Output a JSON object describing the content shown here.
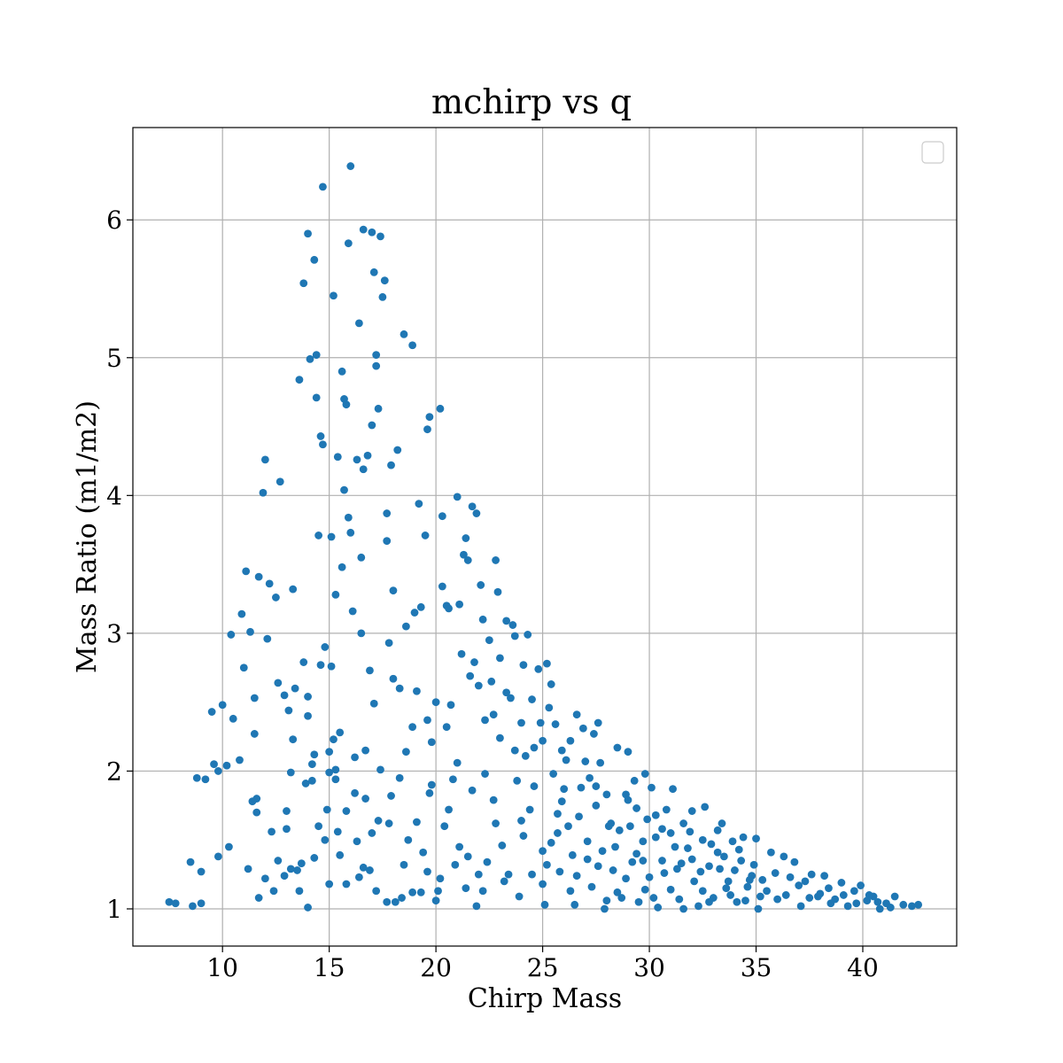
{
  "chart_data": {
    "type": "scatter",
    "title": "mchirp vs q",
    "xlabel": "Chirp Mass",
    "ylabel": "Mass Ratio (m1/m2)",
    "xlim": [
      5.8,
      44.4
    ],
    "ylim": [
      0.73,
      6.67
    ],
    "xticks": [
      10,
      15,
      20,
      25,
      30,
      35,
      40
    ],
    "yticks": [
      1,
      2,
      3,
      4,
      5,
      6
    ],
    "grid": true,
    "legend": {
      "placement": "top-right",
      "entries": []
    },
    "marker_color": "#1f77b4",
    "points": [
      [
        7.5,
        1.05
      ],
      [
        7.8,
        1.04
      ],
      [
        8.5,
        1.34
      ],
      [
        8.6,
        1.02
      ],
      [
        8.8,
        1.95
      ],
      [
        9.0,
        1.27
      ],
      [
        9.0,
        1.04
      ],
      [
        9.2,
        1.94
      ],
      [
        9.5,
        2.43
      ],
      [
        9.6,
        2.05
      ],
      [
        9.8,
        2.0
      ],
      [
        9.8,
        1.38
      ],
      [
        10.0,
        2.48
      ],
      [
        10.2,
        2.04
      ],
      [
        10.3,
        1.45
      ],
      [
        10.4,
        2.99
      ],
      [
        10.5,
        2.38
      ],
      [
        10.8,
        2.08
      ],
      [
        10.9,
        3.14
      ],
      [
        11.0,
        2.75
      ],
      [
        11.1,
        3.45
      ],
      [
        11.2,
        1.29
      ],
      [
        11.3,
        3.01
      ],
      [
        11.5,
        2.53
      ],
      [
        11.5,
        2.27
      ],
      [
        11.6,
        1.8
      ],
      [
        11.6,
        1.7
      ],
      [
        11.7,
        1.08
      ],
      [
        11.7,
        3.41
      ],
      [
        11.9,
        4.02
      ],
      [
        12.0,
        4.26
      ],
      [
        12.1,
        2.96
      ],
      [
        12.2,
        3.36
      ],
      [
        12.3,
        1.56
      ],
      [
        12.4,
        1.13
      ],
      [
        12.5,
        3.26
      ],
      [
        12.6,
        2.64
      ],
      [
        12.7,
        4.1
      ],
      [
        12.9,
        1.24
      ],
      [
        13.0,
        1.58
      ],
      [
        13.0,
        1.71
      ],
      [
        13.1,
        2.44
      ],
      [
        13.2,
        1.99
      ],
      [
        13.2,
        1.29
      ],
      [
        13.3,
        3.32
      ],
      [
        13.4,
        2.6
      ],
      [
        13.5,
        1.28
      ],
      [
        13.6,
        4.84
      ],
      [
        13.7,
        1.33
      ],
      [
        13.8,
        5.54
      ],
      [
        13.8,
        2.79
      ],
      [
        13.9,
        1.91
      ],
      [
        14.0,
        2.54
      ],
      [
        14.0,
        2.4
      ],
      [
        14.0,
        5.9
      ],
      [
        14.1,
        4.99
      ],
      [
        14.2,
        2.05
      ],
      [
        14.2,
        1.93
      ],
      [
        14.3,
        5.71
      ],
      [
        14.3,
        2.12
      ],
      [
        14.4,
        5.02
      ],
      [
        14.4,
        4.71
      ],
      [
        14.5,
        3.71
      ],
      [
        14.5,
        1.6
      ],
      [
        14.6,
        4.43
      ],
      [
        14.7,
        6.24
      ],
      [
        14.7,
        4.37
      ],
      [
        14.8,
        1.5
      ],
      [
        14.8,
        2.9
      ],
      [
        14.9,
        1.72
      ],
      [
        15.0,
        1.99
      ],
      [
        15.0,
        2.14
      ],
      [
        15.1,
        3.7
      ],
      [
        15.1,
        2.76
      ],
      [
        15.2,
        5.45
      ],
      [
        15.2,
        2.23
      ],
      [
        15.3,
        3.28
      ],
      [
        15.3,
        1.94
      ],
      [
        15.4,
        4.28
      ],
      [
        15.4,
        1.56
      ],
      [
        15.5,
        2.28
      ],
      [
        15.5,
        1.39
      ],
      [
        15.6,
        3.48
      ],
      [
        15.6,
        4.9
      ],
      [
        15.7,
        4.04
      ],
      [
        15.7,
        4.7
      ],
      [
        15.8,
        4.66
      ],
      [
        15.8,
        1.18
      ],
      [
        15.9,
        5.83
      ],
      [
        15.9,
        3.84
      ],
      [
        16.0,
        6.39
      ],
      [
        16.0,
        3.73
      ],
      [
        16.1,
        3.16
      ],
      [
        16.2,
        1.84
      ],
      [
        16.3,
        1.49
      ],
      [
        16.3,
        4.26
      ],
      [
        16.4,
        5.25
      ],
      [
        16.5,
        3.55
      ],
      [
        16.5,
        3.0
      ],
      [
        16.6,
        5.93
      ],
      [
        16.6,
        4.19
      ],
      [
        16.7,
        2.15
      ],
      [
        16.7,
        1.8
      ],
      [
        16.8,
        4.29
      ],
      [
        16.9,
        2.73
      ],
      [
        16.9,
        1.28
      ],
      [
        17.0,
        5.91
      ],
      [
        17.0,
        4.51
      ],
      [
        17.1,
        5.62
      ],
      [
        17.1,
        2.49
      ],
      [
        17.2,
        5.02
      ],
      [
        17.2,
        4.94
      ],
      [
        17.3,
        4.63
      ],
      [
        17.3,
        1.64
      ],
      [
        17.4,
        5.88
      ],
      [
        17.5,
        5.44
      ],
      [
        17.6,
        5.56
      ],
      [
        17.7,
        3.87
      ],
      [
        17.7,
        3.67
      ],
      [
        17.8,
        2.93
      ],
      [
        17.8,
        1.62
      ],
      [
        17.9,
        4.22
      ],
      [
        18.0,
        3.31
      ],
      [
        18.0,
        2.67
      ],
      [
        18.1,
        1.05
      ],
      [
        18.2,
        4.33
      ],
      [
        18.3,
        2.6
      ],
      [
        18.4,
        1.08
      ],
      [
        18.5,
        5.17
      ],
      [
        18.6,
        3.05
      ],
      [
        18.7,
        1.5
      ],
      [
        18.9,
        5.09
      ],
      [
        18.9,
        2.32
      ],
      [
        19.0,
        3.15
      ],
      [
        19.1,
        2.58
      ],
      [
        19.2,
        3.94
      ],
      [
        19.3,
        3.19
      ],
      [
        19.3,
        1.12
      ],
      [
        19.5,
        3.71
      ],
      [
        19.6,
        4.48
      ],
      [
        19.6,
        2.37
      ],
      [
        19.7,
        4.57
      ],
      [
        19.7,
        1.84
      ],
      [
        19.8,
        2.21
      ],
      [
        20.0,
        2.5
      ],
      [
        20.1,
        1.13
      ],
      [
        20.2,
        4.63
      ],
      [
        20.3,
        3.85
      ],
      [
        20.3,
        3.34
      ],
      [
        20.4,
        1.6
      ],
      [
        20.5,
        3.2
      ],
      [
        20.6,
        3.18
      ],
      [
        20.7,
        2.48
      ],
      [
        20.8,
        1.94
      ],
      [
        20.9,
        1.32
      ],
      [
        21.0,
        3.99
      ],
      [
        21.1,
        3.21
      ],
      [
        21.2,
        2.85
      ],
      [
        21.3,
        3.57
      ],
      [
        21.4,
        3.69
      ],
      [
        21.4,
        1.15
      ],
      [
        21.5,
        3.53
      ],
      [
        21.6,
        2.69
      ],
      [
        21.7,
        3.92
      ],
      [
        21.8,
        2.79
      ],
      [
        21.9,
        3.87
      ],
      [
        22.0,
        2.62
      ],
      [
        22.0,
        1.25
      ],
      [
        22.1,
        3.35
      ],
      [
        22.2,
        3.1
      ],
      [
        22.3,
        2.37
      ],
      [
        22.4,
        1.34
      ],
      [
        22.5,
        2.95
      ],
      [
        22.6,
        2.65
      ],
      [
        22.7,
        1.79
      ],
      [
        22.8,
        3.53
      ],
      [
        22.9,
        3.3
      ],
      [
        23.0,
        2.82
      ],
      [
        23.0,
        2.24
      ],
      [
        23.1,
        1.46
      ],
      [
        23.3,
        3.09
      ],
      [
        23.3,
        2.57
      ],
      [
        23.5,
        2.53
      ],
      [
        23.6,
        3.06
      ],
      [
        23.7,
        2.98
      ],
      [
        23.8,
        1.93
      ],
      [
        23.9,
        1.09
      ],
      [
        24.0,
        2.35
      ],
      [
        24.1,
        2.77
      ],
      [
        24.2,
        2.11
      ],
      [
        24.3,
        2.99
      ],
      [
        24.4,
        1.72
      ],
      [
        24.5,
        1.25
      ],
      [
        24.6,
        2.17
      ],
      [
        24.8,
        2.74
      ],
      [
        24.9,
        2.35
      ],
      [
        25.0,
        2.22
      ],
      [
        25.0,
        1.42
      ],
      [
        25.1,
        1.03
      ],
      [
        25.2,
        2.78
      ],
      [
        25.3,
        2.46
      ],
      [
        25.4,
        2.63
      ],
      [
        25.5,
        1.98
      ],
      [
        25.6,
        2.34
      ],
      [
        25.7,
        1.69
      ],
      [
        25.8,
        1.27
      ],
      [
        25.9,
        2.15
      ],
      [
        26.0,
        1.87
      ],
      [
        26.2,
        1.6
      ],
      [
        26.3,
        2.22
      ],
      [
        26.4,
        1.39
      ],
      [
        26.5,
        1.03
      ],
      [
        26.6,
        2.41
      ],
      [
        26.8,
        1.88
      ],
      [
        26.9,
        2.31
      ],
      [
        27.0,
        2.07
      ],
      [
        27.1,
        1.49
      ],
      [
        27.3,
        1.16
      ],
      [
        27.4,
        2.27
      ],
      [
        27.5,
        1.75
      ],
      [
        27.6,
        2.35
      ],
      [
        27.7,
        2.06
      ],
      [
        27.8,
        1.42
      ],
      [
        27.9,
        1.0
      ],
      [
        28.0,
        1.83
      ],
      [
        28.2,
        1.62
      ],
      [
        28.3,
        1.28
      ],
      [
        28.5,
        2.17
      ],
      [
        28.6,
        1.57
      ],
      [
        28.7,
        1.08
      ],
      [
        28.9,
        1.83
      ],
      [
        29.0,
        2.14
      ],
      [
        29.1,
        1.6
      ],
      [
        29.2,
        1.34
      ],
      [
        29.4,
        1.73
      ],
      [
        29.5,
        1.05
      ],
      [
        29.7,
        1.49
      ],
      [
        29.8,
        1.98
      ],
      [
        29.9,
        1.65
      ],
      [
        30.0,
        1.23
      ],
      [
        30.1,
        1.88
      ],
      [
        30.3,
        1.52
      ],
      [
        30.4,
        1.01
      ],
      [
        30.6,
        1.35
      ],
      [
        30.8,
        1.72
      ],
      [
        31.0,
        1.55
      ],
      [
        31.1,
        1.87
      ],
      [
        31.3,
        1.29
      ],
      [
        31.4,
        1.07
      ],
      [
        31.6,
        1.62
      ],
      [
        31.8,
        1.44
      ],
      [
        32.0,
        1.71
      ],
      [
        32.1,
        1.2
      ],
      [
        32.3,
        1.02
      ],
      [
        32.5,
        1.5
      ],
      [
        32.6,
        1.74
      ],
      [
        32.8,
        1.31
      ],
      [
        33.0,
        1.08
      ],
      [
        33.2,
        1.57
      ],
      [
        33.4,
        1.62
      ],
      [
        33.5,
        1.38
      ],
      [
        33.7,
        1.2
      ],
      [
        33.9,
        1.49
      ],
      [
        34.1,
        1.05
      ],
      [
        34.3,
        1.35
      ],
      [
        34.4,
        1.52
      ],
      [
        34.6,
        1.16
      ],
      [
        34.8,
        1.24
      ],
      [
        35.0,
        1.51
      ],
      [
        35.2,
        1.09
      ],
      [
        35.5,
        1.13
      ],
      [
        35.7,
        1.41
      ],
      [
        36.0,
        1.07
      ],
      [
        36.3,
        1.38
      ],
      [
        36.6,
        1.23
      ],
      [
        36.8,
        1.34
      ],
      [
        37.1,
        1.02
      ],
      [
        37.3,
        1.2
      ],
      [
        37.6,
        1.25
      ],
      [
        37.9,
        1.09
      ],
      [
        38.2,
        1.24
      ],
      [
        38.4,
        1.15
      ],
      [
        38.7,
        1.07
      ],
      [
        39.0,
        1.19
      ],
      [
        39.3,
        1.02
      ],
      [
        39.6,
        1.13
      ],
      [
        39.9,
        1.17
      ],
      [
        40.2,
        1.06
      ],
      [
        40.5,
        1.09
      ],
      [
        40.8,
        1.0
      ],
      [
        41.1,
        1.04
      ],
      [
        41.5,
        1.09
      ],
      [
        41.9,
        1.03
      ],
      [
        42.3,
        1.02
      ],
      [
        42.6,
        1.03
      ],
      [
        12.6,
        1.35
      ],
      [
        13.3,
        2.23
      ],
      [
        14.0,
        1.01
      ],
      [
        14.6,
        2.77
      ],
      [
        15.3,
        2.01
      ],
      [
        16.2,
        2.1
      ],
      [
        16.6,
        1.3
      ],
      [
        17.0,
        1.55
      ],
      [
        17.4,
        2.01
      ],
      [
        17.7,
        1.05
      ],
      [
        18.3,
        1.95
      ],
      [
        18.6,
        2.14
      ],
      [
        18.9,
        1.12
      ],
      [
        19.4,
        1.41
      ],
      [
        19.8,
        1.9
      ],
      [
        20.2,
        1.22
      ],
      [
        20.6,
        1.72
      ],
      [
        21.0,
        2.06
      ],
      [
        21.5,
        1.38
      ],
      [
        21.9,
        1.02
      ],
      [
        22.3,
        1.98
      ],
      [
        22.8,
        1.62
      ],
      [
        23.2,
        1.2
      ],
      [
        23.7,
        2.15
      ],
      [
        24.1,
        1.53
      ],
      [
        24.6,
        1.89
      ],
      [
        25.0,
        1.18
      ],
      [
        25.4,
        1.48
      ],
      [
        25.9,
        1.78
      ],
      [
        26.3,
        1.13
      ],
      [
        26.7,
        1.67
      ],
      [
        27.2,
        1.95
      ],
      [
        27.6,
        1.31
      ],
      [
        28.1,
        1.6
      ],
      [
        28.5,
        1.12
      ],
      [
        29.0,
        1.79
      ],
      [
        29.4,
        1.4
      ],
      [
        29.8,
        1.14
      ],
      [
        30.3,
        1.68
      ],
      [
        30.7,
        1.26
      ],
      [
        31.2,
        1.45
      ],
      [
        31.6,
        1.0
      ],
      [
        32.0,
        1.36
      ],
      [
        32.5,
        1.13
      ],
      [
        32.9,
        1.47
      ],
      [
        33.3,
        1.29
      ],
      [
        33.8,
        1.1
      ],
      [
        34.2,
        1.43
      ],
      [
        34.7,
        1.21
      ],
      [
        35.1,
        1.0
      ],
      [
        11.4,
        1.78
      ],
      [
        12.0,
        1.22
      ],
      [
        12.9,
        2.55
      ],
      [
        13.6,
        1.13
      ],
      [
        14.3,
        1.37
      ],
      [
        15.0,
        1.18
      ],
      [
        15.8,
        1.71
      ],
      [
        16.4,
        1.23
      ],
      [
        17.2,
        1.13
      ],
      [
        17.9,
        1.82
      ],
      [
        18.5,
        1.32
      ],
      [
        19.1,
        1.63
      ],
      [
        19.6,
        1.27
      ],
      [
        20.0,
        1.06
      ],
      [
        20.5,
        2.32
      ],
      [
        21.1,
        1.45
      ],
      [
        21.7,
        1.86
      ],
      [
        22.2,
        1.13
      ],
      [
        22.7,
        2.41
      ],
      [
        23.4,
        1.25
      ],
      [
        24.0,
        1.64
      ],
      [
        24.5,
        2.52
      ],
      [
        25.2,
        1.32
      ],
      [
        25.7,
        1.55
      ],
      [
        26.1,
        2.08
      ],
      [
        26.6,
        1.24
      ],
      [
        27.1,
        1.36
      ],
      [
        27.5,
        1.89
      ],
      [
        28.0,
        1.06
      ],
      [
        28.4,
        1.45
      ],
      [
        28.9,
        1.22
      ],
      [
        29.3,
        1.93
      ],
      [
        29.7,
        1.35
      ],
      [
        30.2,
        1.08
      ],
      [
        30.6,
        1.58
      ],
      [
        31.0,
        1.14
      ],
      [
        31.5,
        1.33
      ],
      [
        31.9,
        1.56
      ],
      [
        32.4,
        1.27
      ],
      [
        32.8,
        1.05
      ],
      [
        33.2,
        1.41
      ],
      [
        33.6,
        1.15
      ],
      [
        34.0,
        1.28
      ],
      [
        34.5,
        1.06
      ],
      [
        34.9,
        1.32
      ],
      [
        35.3,
        1.21
      ],
      [
        35.9,
        1.26
      ],
      [
        36.4,
        1.1
      ],
      [
        37.0,
        1.17
      ],
      [
        37.5,
        1.08
      ],
      [
        38.0,
        1.11
      ],
      [
        38.5,
        1.04
      ],
      [
        39.1,
        1.1
      ],
      [
        39.7,
        1.04
      ],
      [
        40.3,
        1.1
      ],
      [
        40.7,
        1.05
      ],
      [
        41.3,
        1.01
      ]
    ]
  }
}
